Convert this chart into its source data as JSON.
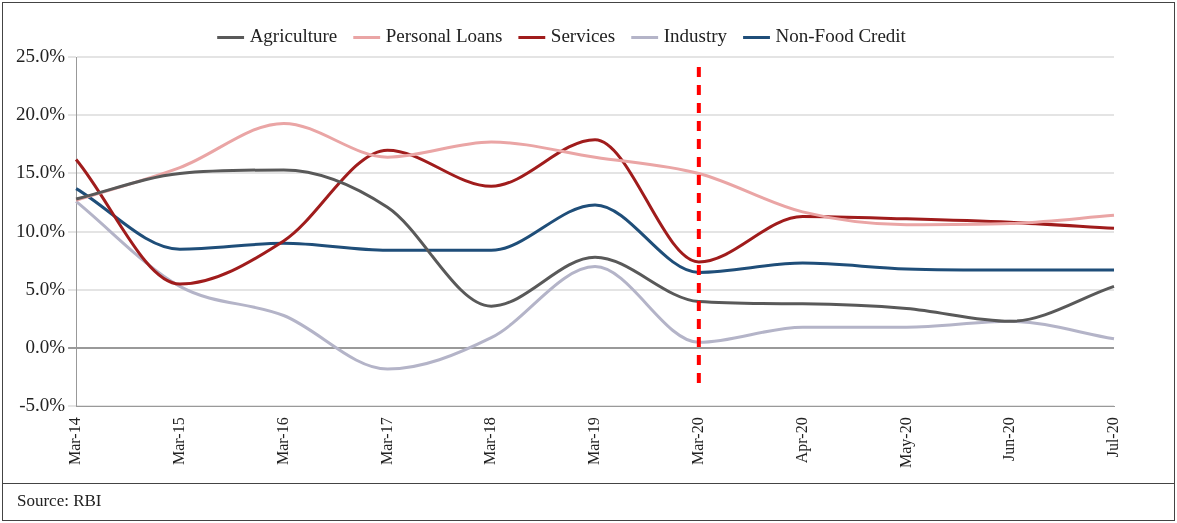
{
  "chart_data": {
    "type": "line",
    "categories": [
      "Mar-14",
      "Mar-15",
      "Mar-16",
      "Mar-17",
      "Mar-18",
      "Mar-19",
      "Mar-20",
      "Apr-20",
      "May-20",
      "Jun-20",
      "Jul-20"
    ],
    "series": [
      {
        "name": "Non-Food Credit",
        "color": "#1f4e79",
        "values": [
          13.7,
          8.5,
          9.0,
          8.4,
          8.4,
          12.3,
          6.5,
          7.3,
          6.8,
          6.7,
          6.7
        ]
      },
      {
        "name": "Industry",
        "color": "#b4b4c8",
        "values": [
          12.6,
          5.3,
          2.8,
          -1.8,
          0.9,
          7.0,
          0.5,
          1.8,
          1.8,
          2.3,
          0.8
        ]
      },
      {
        "name": "Services",
        "color": "#a01c1c",
        "values": [
          16.2,
          5.5,
          9.2,
          17.0,
          13.9,
          17.9,
          7.4,
          11.3,
          11.1,
          10.8,
          10.3
        ]
      },
      {
        "name": "Personal Loans",
        "color": "#eaa5a5",
        "values": [
          12.7,
          15.5,
          19.3,
          16.4,
          17.7,
          16.4,
          15.0,
          11.7,
          10.6,
          10.7,
          11.4
        ]
      },
      {
        "name": "Agriculture",
        "color": "#595959",
        "values": [
          12.8,
          15.0,
          15.3,
          12.1,
          3.6,
          7.8,
          4.0,
          3.8,
          3.4,
          2.3,
          5.3
        ]
      }
    ],
    "ylim": [
      -5,
      25
    ],
    "yticks": [
      {
        "value": -5,
        "label": "-5.0%"
      },
      {
        "value": 0,
        "label": "0.0%"
      },
      {
        "value": 5,
        "label": "5.0%"
      },
      {
        "value": 10,
        "label": "10.0%"
      },
      {
        "value": 15,
        "label": "15.0%"
      },
      {
        "value": 20,
        "label": "20.0%"
      },
      {
        "value": 25,
        "label": "25.0%"
      }
    ],
    "ref_lines": [
      {
        "axis": "x",
        "value": "Mar-20",
        "color": "#ff0000",
        "line_style": "dashed"
      }
    ],
    "grid": "y",
    "legend": "top",
    "marker": "none",
    "line_style": "solid",
    "annotations": [
      "Source: RBI"
    ]
  }
}
